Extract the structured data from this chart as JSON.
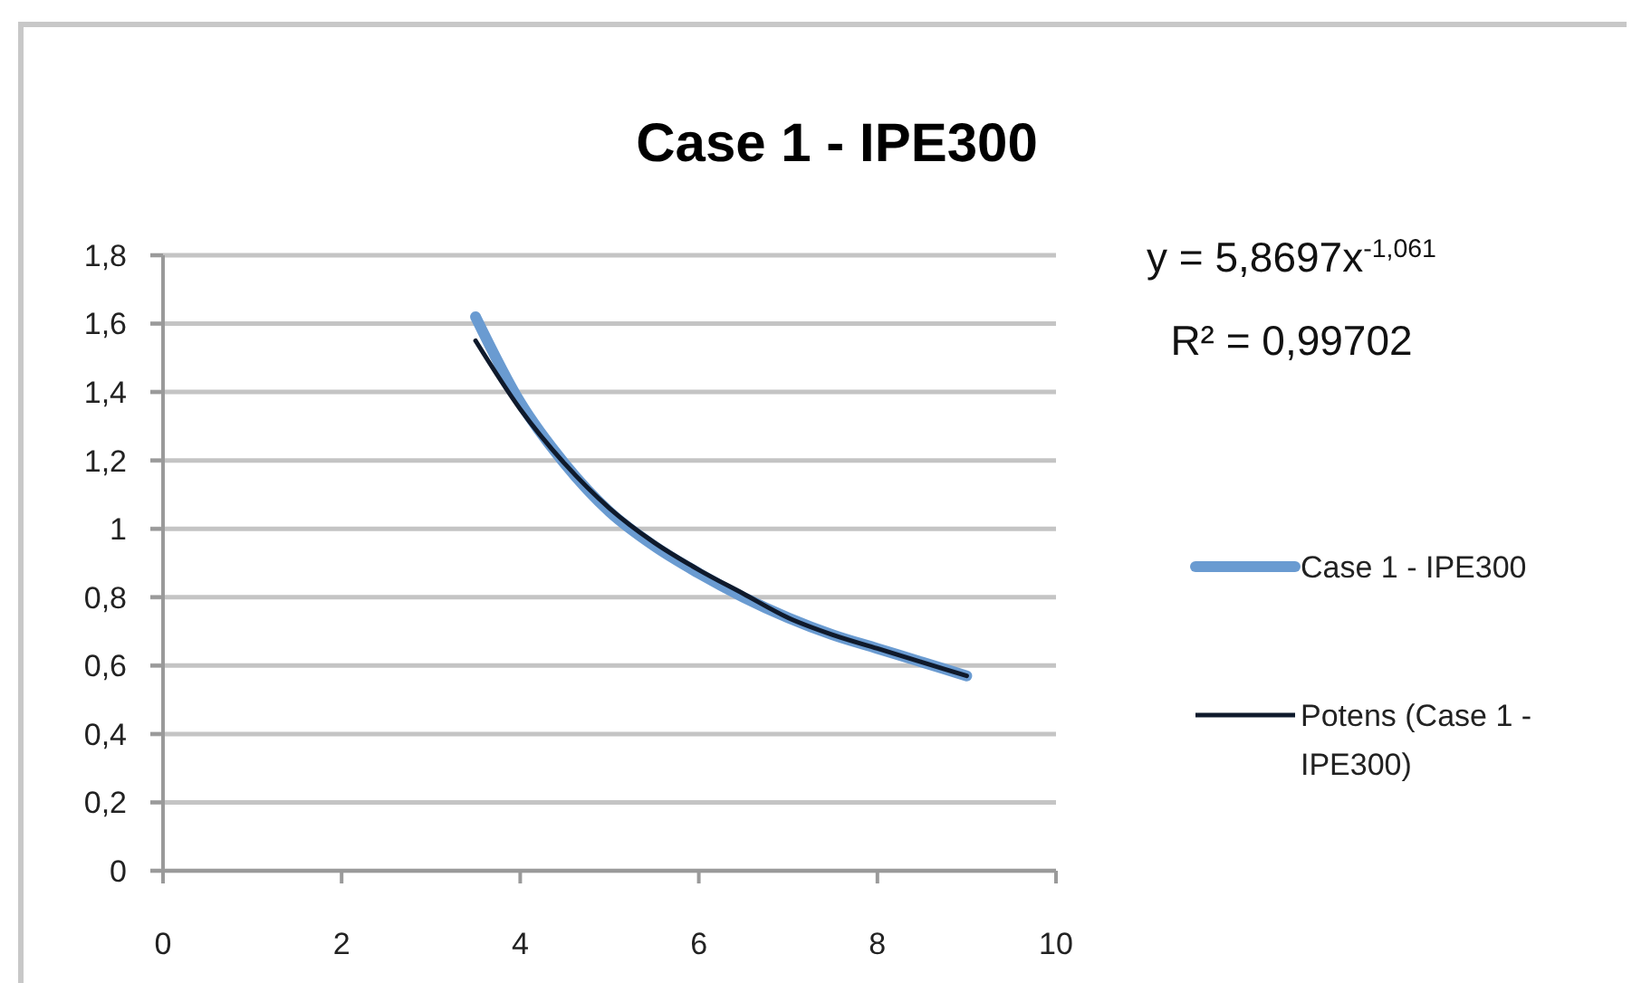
{
  "chart_data": {
    "type": "line",
    "title": "Case 1 - IPE300",
    "x": [
      3.5,
      4,
      4.5,
      5,
      5.5,
      6,
      6.5,
      7,
      7.5,
      8,
      8.5,
      9
    ],
    "series": [
      {
        "name": "Case 1 - IPE300",
        "color": "#6a9bd1",
        "values": [
          1.62,
          1.37,
          1.19,
          1.05,
          0.95,
          0.87,
          0.8,
          0.74,
          0.69,
          0.65,
          0.61,
          0.57
        ]
      },
      {
        "name": "Potens (Case 1 - IPE300)",
        "type": "line",
        "color": "#0f1a2c",
        "x": [
          3.5,
          4,
          4.5,
          5,
          5.5,
          6,
          6.5,
          7,
          7.5,
          8,
          8.5,
          9
        ],
        "values": [
          1.55,
          1.35,
          1.19,
          1.06,
          0.96,
          0.88,
          0.81,
          0.74,
          0.69,
          0.65,
          0.61,
          0.57
        ]
      }
    ],
    "xlim": [
      0,
      10
    ],
    "xticks": [
      0,
      2,
      4,
      6,
      8,
      10
    ],
    "ylim": [
      0,
      1.8
    ],
    "yticks": [
      0,
      {
        "value": 0.2,
        "label": "0,2"
      },
      {
        "value": 0.4,
        "label": "0,4"
      },
      {
        "value": 0.6,
        "label": "0,6"
      },
      {
        "value": 0.8,
        "label": "0,8"
      },
      1,
      {
        "value": 1.2,
        "label": "1,2"
      },
      {
        "value": 1.4,
        "label": "1,4"
      },
      {
        "value": 1.6,
        "label": "1,6"
      },
      {
        "value": 1.8,
        "label": "1,8"
      }
    ],
    "grid": "y",
    "legend": "right",
    "annotations": [
      "y = 5,8697x$^{-1,061}$",
      "R² = 0,99702"
    ]
  }
}
